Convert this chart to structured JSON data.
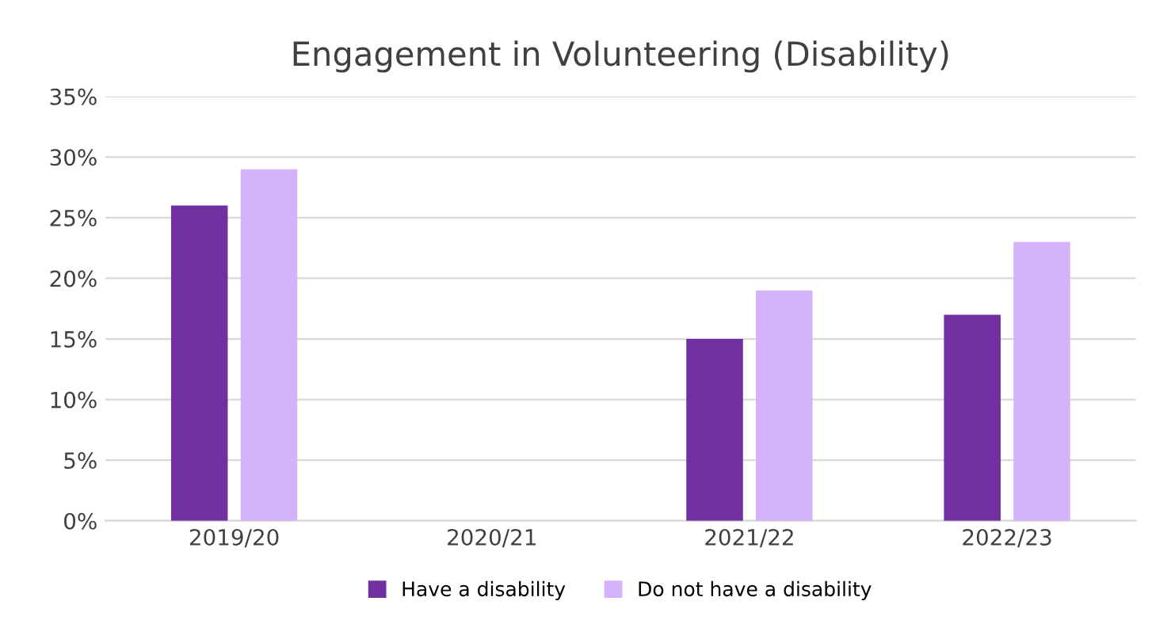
{
  "chart_data": {
    "type": "bar",
    "title": "Engagement in Volunteering (Disability)",
    "categories": [
      "2019/20",
      "2020/21",
      "2021/22",
      "2022/23"
    ],
    "series": [
      {
        "name": "Have a disability",
        "color": "#7030a0",
        "values": [
          26,
          null,
          15,
          17
        ]
      },
      {
        "name": "Do not have a disability",
        "color": "#d5b3fb",
        "values": [
          29,
          null,
          19,
          23
        ]
      }
    ],
    "ylim": [
      0,
      35
    ],
    "yticks": [
      {
        "value": 0,
        "label": "0%"
      },
      {
        "value": 5,
        "label": "5%"
      },
      {
        "value": 10,
        "label": "10%"
      },
      {
        "value": 15,
        "label": "15%"
      },
      {
        "value": 20,
        "label": "20%"
      },
      {
        "value": 25,
        "label": "25%"
      },
      {
        "value": 30,
        "label": "30%"
      },
      {
        "value": 35,
        "label": "35%"
      }
    ],
    "grid": "y",
    "legend": "bottom"
  }
}
